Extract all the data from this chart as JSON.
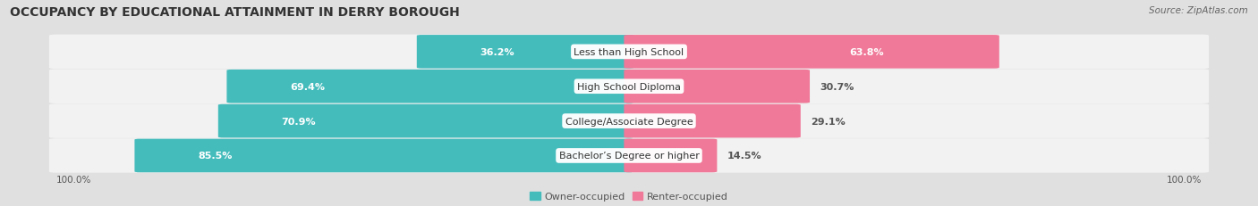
{
  "title": "OCCUPANCY BY EDUCATIONAL ATTAINMENT IN DERRY BOROUGH",
  "source": "Source: ZipAtlas.com",
  "categories": [
    "Less than High School",
    "High School Diploma",
    "College/Associate Degree",
    "Bachelor’s Degree or higher"
  ],
  "owner_pct": [
    36.2,
    69.4,
    70.9,
    85.5
  ],
  "renter_pct": [
    63.8,
    30.7,
    29.1,
    14.5
  ],
  "owner_color": "#45BCBC",
  "renter_color": "#F07898",
  "bg_color": "#E0E0E0",
  "row_bg_even": "#F0F0F0",
  "row_bg_odd": "#E8E8E8",
  "axis_label_left": "100.0%",
  "axis_label_right": "100.0%",
  "legend_owner": "Owner-occupied",
  "legend_renter": "Renter-occupied",
  "title_fontsize": 10,
  "source_fontsize": 7.5,
  "bar_label_fontsize": 8,
  "category_fontsize": 8,
  "axis_fontsize": 7.5,
  "legend_fontsize": 8
}
